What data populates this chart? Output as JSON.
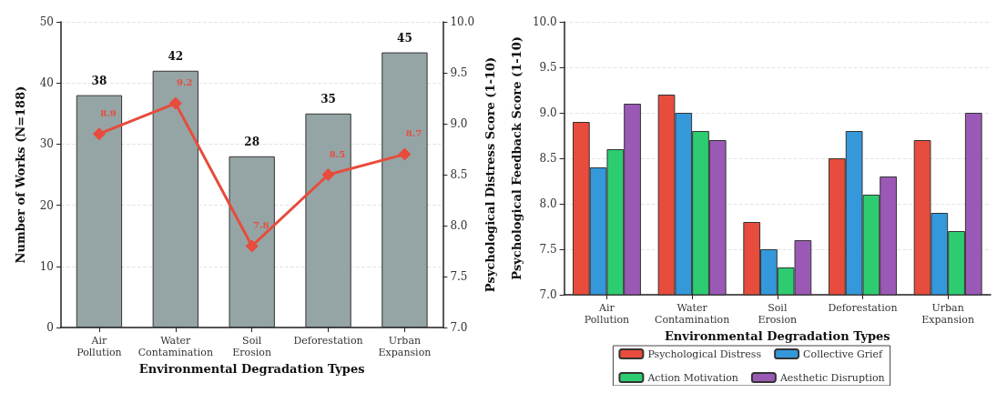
{
  "chart_data": [
    {
      "type": "bar",
      "xlabel": "Environmental Degradation Types",
      "ylabel": "Number of Works (N=188)",
      "y2label": "Psychological Distress Score (1-10)",
      "categories": [
        "Air\nPollution",
        "Water\nContamination",
        "Soil\nErosion",
        "Deforestation",
        "Urban\nExpansion"
      ],
      "series": [
        {
          "color": "#95a5a6",
          "values": [
            38,
            42,
            28,
            35,
            45
          ]
        },
        {
          "type": "line",
          "axis": "y2",
          "color": "#e74c3c",
          "values": [
            8.9,
            9.2,
            7.8,
            8.5,
            8.7
          ]
        }
      ],
      "ylim": [
        0,
        50
      ],
      "yticks": [
        0,
        10,
        20,
        30,
        40,
        50
      ],
      "y2lim": [
        7,
        10
      ],
      "y2ticks": [
        {
          "value": 7,
          "label": "7.0"
        },
        {
          "value": 7.5,
          "label": "7.5"
        },
        {
          "value": 8,
          "label": "8.0"
        },
        {
          "value": 8.5,
          "label": "8.5"
        },
        {
          "value": 9,
          "label": "9.0"
        },
        {
          "value": 9.5,
          "label": "9.5"
        },
        {
          "value": 10,
          "label": "10.0"
        }
      ],
      "marker": "diamond",
      "data_labels": true,
      "grid": "y",
      "legend": false
    },
    {
      "type": "bar",
      "xlabel": "Environmental Degradation Types",
      "ylabel": "Psychological Feedback Score (1-10)",
      "categories": [
        "Air\nPollution",
        "Water\nContamination",
        "Soil\nErosion",
        "Deforestation",
        "Urban\nExpansion"
      ],
      "series": [
        {
          "name": "Psychological Distress",
          "color": "#e74c3c",
          "values": [
            8.9,
            9.2,
            7.8,
            8.5,
            8.7
          ]
        },
        {
          "name": "Collective Grief",
          "color": "#3498db",
          "values": [
            8.4,
            9.0,
            7.5,
            8.8,
            7.9
          ]
        },
        {
          "name": "Action Motivation",
          "color": "#2ecc71",
          "values": [
            8.6,
            8.8,
            7.3,
            8.1,
            7.7
          ]
        },
        {
          "name": "Aesthetic Disruption",
          "color": "#9b59b6",
          "values": [
            9.1,
            8.7,
            7.6,
            8.3,
            9.0
          ]
        }
      ],
      "ylim": [
        7,
        10
      ],
      "yticks": [
        {
          "value": 7,
          "label": "7.0"
        },
        {
          "value": 7.5,
          "label": "7.5"
        },
        {
          "value": 8,
          "label": "8.0"
        },
        {
          "value": 8.5,
          "label": "8.5"
        },
        {
          "value": 9,
          "label": "9.0"
        },
        {
          "value": 9.5,
          "label": "9.5"
        },
        {
          "value": 10,
          "label": "10.0"
        }
      ],
      "grid": "y",
      "legend": "bottom"
    }
  ]
}
